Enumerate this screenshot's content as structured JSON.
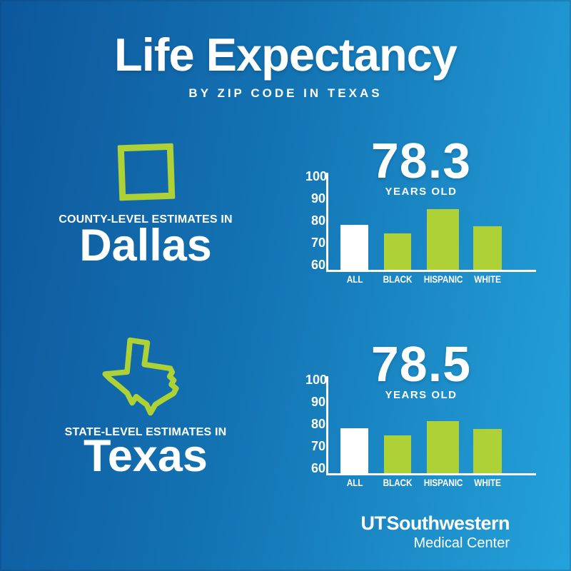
{
  "header": {
    "title": "Life Expectancy",
    "subtitle": "BY ZIP CODE IN TEXAS"
  },
  "colors": {
    "background_left": "#0d579c",
    "background_right": "#24a2db",
    "accent_green": "#aed136",
    "text_white": "#ffffff"
  },
  "sections": [
    {
      "icon": "square-outline-icon",
      "eyebrow": "COUNTY-LEVEL ESTIMATES IN",
      "name": "Dallas",
      "headline_value": "78.3",
      "headline_unit": "YEARS OLD"
    },
    {
      "icon": "texas-outline-icon",
      "eyebrow": "STATE-LEVEL ESTIMATES IN",
      "name": "Texas",
      "headline_value": "78.5",
      "headline_unit": "YEARS OLD"
    }
  ],
  "chart_data": [
    {
      "type": "bar",
      "title": "78.3 YEARS OLD",
      "region": "Dallas (county-level estimates)",
      "categories": [
        "ALL",
        "BLACK",
        "HISPANIC",
        "WHITE"
      ],
      "values": [
        78.3,
        74.5,
        85.5,
        77.8
      ],
      "bar_colors": [
        "#ffffff",
        "#aed136",
        "#aed136",
        "#aed136"
      ],
      "ylim": [
        60,
        100
      ],
      "yticks": [
        100,
        90,
        80,
        70,
        60
      ],
      "grid": false,
      "legend": "none"
    },
    {
      "type": "bar",
      "title": "78.5 YEARS OLD",
      "region": "Texas (state-level estimates)",
      "categories": [
        "ALL",
        "BLACK",
        "HISPANIC",
        "WHITE"
      ],
      "values": [
        78.5,
        75.0,
        81.5,
        78.0
      ],
      "bar_colors": [
        "#ffffff",
        "#aed136",
        "#aed136",
        "#aed136"
      ],
      "ylim": [
        60,
        100
      ],
      "yticks": [
        100,
        90,
        80,
        70,
        60
      ],
      "grid": false,
      "legend": "none"
    }
  ],
  "footer": {
    "brand_ut": "UT",
    "brand_name": "Southwestern",
    "brand_sub": "Medical Center"
  }
}
